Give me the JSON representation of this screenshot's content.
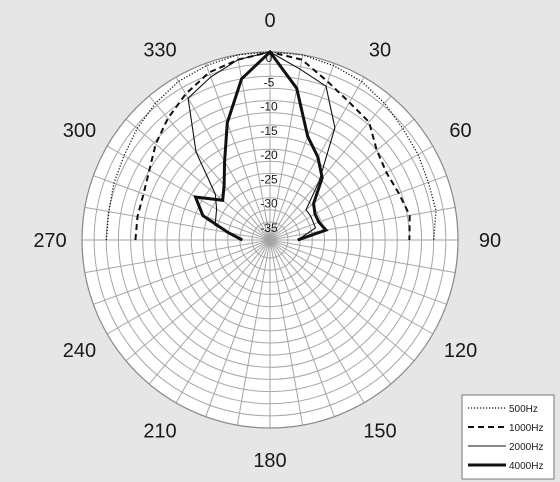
{
  "chart_data": {
    "type": "polar-line",
    "title": "",
    "angle_unit": "degrees",
    "angle_direction": "clockwise from top",
    "angle_labels": [
      "0",
      "30",
      "60",
      "90",
      "120",
      "150",
      "180",
      "210",
      "240",
      "270",
      "300",
      "330"
    ],
    "radial_labels": [
      "0",
      "-5",
      "-10",
      "-15",
      "-20",
      "-25",
      "-30",
      "-35"
    ],
    "radial_range": [
      -35,
      0
    ],
    "grid": true,
    "legend_position": "bottom-right",
    "series": [
      {
        "name": "500Hz",
        "style": "dotted",
        "points": [
          [
            270,
            -5
          ],
          [
            280,
            -5
          ],
          [
            290,
            -4.5
          ],
          [
            300,
            -4
          ],
          [
            310,
            -3
          ],
          [
            320,
            -2
          ],
          [
            330,
            -1
          ],
          [
            340,
            -0.5
          ],
          [
            350,
            0
          ],
          [
            0,
            0
          ],
          [
            10,
            0
          ],
          [
            20,
            -0.5
          ],
          [
            30,
            -1
          ],
          [
            40,
            -2
          ],
          [
            50,
            -3
          ],
          [
            60,
            -3.5
          ],
          [
            70,
            -4
          ],
          [
            80,
            -4
          ],
          [
            90,
            -5
          ]
        ]
      },
      {
        "name": "1000Hz",
        "style": "dashed",
        "points": [
          [
            270,
            -11
          ],
          [
            280,
            -11
          ],
          [
            290,
            -11
          ],
          [
            300,
            -10
          ],
          [
            310,
            -8
          ],
          [
            320,
            -6
          ],
          [
            330,
            -4
          ],
          [
            340,
            -2
          ],
          [
            350,
            -1
          ],
          [
            0,
            0
          ],
          [
            10,
            -1
          ],
          [
            20,
            -4
          ],
          [
            30,
            -6
          ],
          [
            40,
            -7
          ],
          [
            50,
            -10
          ],
          [
            60,
            -11
          ],
          [
            70,
            -10.5
          ],
          [
            80,
            -9.5
          ],
          [
            90,
            -10
          ]
        ]
      },
      {
        "name": "2000Hz",
        "style": "solid-thin",
        "points": [
          [
            270,
            -33
          ],
          [
            285,
            -27
          ],
          [
            300,
            -26
          ],
          [
            310,
            -24
          ],
          [
            320,
            -15
          ],
          [
            330,
            -5
          ],
          [
            340,
            -3
          ],
          [
            350,
            -1
          ],
          [
            0,
            0
          ],
          [
            10,
            -3
          ],
          [
            20,
            -5
          ],
          [
            30,
            -12
          ],
          [
            40,
            -23
          ],
          [
            50,
            -29
          ],
          [
            60,
            -29
          ],
          [
            75,
            -29
          ],
          [
            90,
            -33
          ]
        ]
      },
      {
        "name": "4000Hz",
        "style": "solid-thick",
        "points": [
          [
            270,
            -33
          ],
          [
            280,
            -30
          ],
          [
            290,
            -24
          ],
          [
            300,
            -21
          ],
          [
            310,
            -26
          ],
          [
            320,
            -24
          ],
          [
            330,
            -20
          ],
          [
            340,
            -13
          ],
          [
            350,
            -5
          ],
          [
            0,
            0
          ],
          [
            10,
            -7
          ],
          [
            20,
            -16
          ],
          [
            30,
            -19
          ],
          [
            40,
            -22
          ],
          [
            50,
            -27
          ],
          [
            60,
            -28
          ],
          [
            70,
            -28
          ],
          [
            80,
            -27
          ],
          [
            90,
            -33
          ]
        ]
      }
    ]
  },
  "legend": {
    "items": [
      "500Hz",
      "1000Hz",
      "2000Hz",
      "4000Hz"
    ]
  }
}
